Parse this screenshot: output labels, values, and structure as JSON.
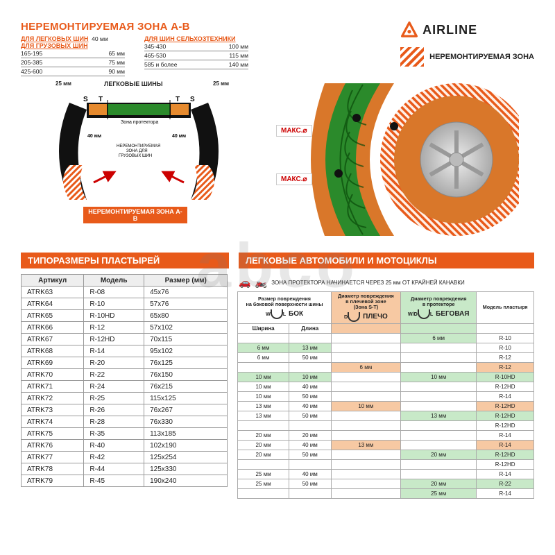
{
  "brand": "AIRLINE",
  "brand_color": "#e85a1a",
  "title_main": "НЕРЕМОНТИРУЕМАЯ ЗОНА А-В",
  "legend_label": "НЕРЕМОНТИРУЕМАЯ ЗОНА",
  "spec_groups": [
    {
      "heading": "ДЛЯ ЛЕГКОВЫХ ШИН",
      "inline": "40 мм",
      "rows": []
    },
    {
      "heading": "ДЛЯ ГРУЗОВЫХ ШИН",
      "rows": [
        {
          "l": "165-195",
          "r": "65 мм"
        },
        {
          "l": "205-385",
          "r": "75 мм"
        },
        {
          "l": "425-600",
          "r": "90 мм"
        }
      ]
    },
    {
      "heading": "ДЛЯ ШИН СЕЛЬХОЗТЕХНИКИ",
      "rows": [
        {
          "l": "345-430",
          "r": "100 мм"
        },
        {
          "l": "465-530",
          "r": "115 мм"
        },
        {
          "l": "585 и более",
          "r": "140 мм"
        }
      ]
    }
  ],
  "cross_section": {
    "top_label": "ЛЕГКОВЫЕ ШИНЫ",
    "s_label": "S",
    "t_label": "T",
    "dim25": "25 мм",
    "dim40": "40 мм",
    "tread_label": "Зона протектора",
    "truck_label": "НЕРЕМОНТИРУЕМАЯ ЗОНА ДЛЯ ГРУЗОВЫХ ШИН",
    "bottom_banner": "НЕРЕМОНТИРУЕМАЯ ЗОНА А-В",
    "colors": {
      "tread": "#2b8a2b",
      "shoulder": "#e68a2e",
      "bead": "#c01010",
      "outline": "#111"
    }
  },
  "tire_view": {
    "maks_label": "МАКС.⌀",
    "colors": {
      "tread": "#2b8a2b",
      "shoulder": "#d9772a",
      "rim": "#cfcfcf",
      "hatch": "#e85a1a"
    }
  },
  "bar_left": "ТИПОРАЗМЕРЫ ПЛАСТЫРЕЙ",
  "bar_right": "ЛЕГКОВЫЕ АВТОМОБИЛИ И МОТОЦИКЛЫ",
  "table1": {
    "cols": [
      "Артикул",
      "Модель",
      "Размер (мм)"
    ],
    "rows": [
      [
        "ATRK63",
        "R-08",
        "45x76"
      ],
      [
        "ATRK64",
        "R-10",
        "57x76"
      ],
      [
        "ATRK65",
        "R-10HD",
        "65x80"
      ],
      [
        "ATRK66",
        "R-12",
        "57x102"
      ],
      [
        "ATRK67",
        "R-12HD",
        "70x115"
      ],
      [
        "ATRK68",
        "R-14",
        "95x102"
      ],
      [
        "ATRK69",
        "R-20",
        "76x125"
      ],
      [
        "ATRK70",
        "R-22",
        "76x150"
      ],
      [
        "ATRK71",
        "R-24",
        "76x215"
      ],
      [
        "ATRK72",
        "R-25",
        "115x125"
      ],
      [
        "ATRK73",
        "R-26",
        "76x267"
      ],
      [
        "ATRK74",
        "R-28",
        "76x330"
      ],
      [
        "ATRK75",
        "R-35",
        "113x185"
      ],
      [
        "ATRK76",
        "R-40",
        "102x190"
      ],
      [
        "ATRK77",
        "R-42",
        "125x254"
      ],
      [
        "ATRK78",
        "R-44",
        "125x330"
      ],
      [
        "ATRK79",
        "R-45",
        "190x240"
      ]
    ]
  },
  "note": "ЗОНА ПРОТЕКТОРА НАЧИНАЕТСЯ ЧЕРЕЗ 25 мм ОТ КРАЙНЕЙ КАНАВКИ",
  "table2": {
    "head_side": {
      "line1": "Размер повреждения",
      "line2": "на боковой поверхности шины",
      "tag": "БОК",
      "sub1": "Ширина",
      "sub2": "Длина"
    },
    "head_shoulder": {
      "line1": "Диаметр повреждения",
      "line2": "в плечевой зоне",
      "line3": "(Зона S-T)",
      "tag": "ПЛЕЧО"
    },
    "head_tread": {
      "line1": "Диаметр повреждения",
      "line2": "в протекторе",
      "tag": "БЕГОВАЯ"
    },
    "head_model": "Модель пластыря",
    "rows": [
      {
        "w": "",
        "l": "",
        "sh": "",
        "tr": "6 мм",
        "m": "R-10",
        "tr_hl": "mint"
      },
      {
        "w": "6 мм",
        "l": "13 мм",
        "sh": "",
        "tr": "",
        "m": "R-10",
        "w_hl": "mint",
        "l_hl": "mint"
      },
      {
        "w": "6 мм",
        "l": "50 мм",
        "sh": "",
        "tr": "",
        "m": "R-12"
      },
      {
        "w": "",
        "l": "",
        "sh": "6 мм",
        "tr": "",
        "m": "R-12",
        "sh_hl": "peach",
        "m_hl": "peach"
      },
      {
        "w": "10 мм",
        "l": "10 мм",
        "sh": "",
        "tr": "10 мм",
        "m": "R-10HD",
        "w_hl": "mint",
        "l_hl": "mint",
        "tr_hl": "mint",
        "m_hl": "mint"
      },
      {
        "w": "10 мм",
        "l": "40 мм",
        "sh": "",
        "tr": "",
        "m": "R-12HD"
      },
      {
        "w": "10 мм",
        "l": "50 мм",
        "sh": "",
        "tr": "",
        "m": "R-14"
      },
      {
        "w": "13 мм",
        "l": "40 мм",
        "sh": "10 мм",
        "tr": "",
        "m": "R-12HD",
        "sh_hl": "peach",
        "m_hl": "peach"
      },
      {
        "w": "13 мм",
        "l": "50 мм",
        "sh": "",
        "tr": "13 мм",
        "m": "R-12HD",
        "tr_hl": "mint",
        "m_hl": "mint"
      },
      {
        "w": "",
        "l": "",
        "sh": "",
        "tr": "",
        "m": "R-12HD"
      },
      {
        "w": "20 мм",
        "l": "20 мм",
        "sh": "",
        "tr": "",
        "m": "R-14"
      },
      {
        "w": "20 мм",
        "l": "40 мм",
        "sh": "13 мм",
        "tr": "",
        "m": "R-14",
        "sh_hl": "peach",
        "m_hl": "peach"
      },
      {
        "w": "20 мм",
        "l": "50 мм",
        "sh": "",
        "tr": "20 мм",
        "m": "R-12HD",
        "tr_hl": "mint",
        "m_hl": "mint"
      },
      {
        "w": "",
        "l": "",
        "sh": "",
        "tr": "",
        "m": "R-12HD"
      },
      {
        "w": "25 мм",
        "l": "40 мм",
        "sh": "",
        "tr": "",
        "m": "R-14"
      },
      {
        "w": "25 мм",
        "l": "50 мм",
        "sh": "",
        "tr": "20 мм",
        "m": "R-22",
        "tr_hl": "mint",
        "m_hl": "mint"
      },
      {
        "w": "",
        "l": "",
        "sh": "",
        "tr": "25 мм",
        "m": "R-14",
        "tr_hl": "mint"
      }
    ]
  },
  "watermark": "abco"
}
